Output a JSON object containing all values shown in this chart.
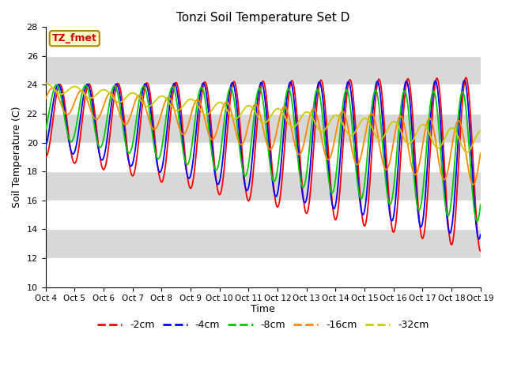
{
  "title": "Tonzi Soil Temperature Set D",
  "xlabel": "Time",
  "ylabel": "Soil Temperature (C)",
  "ylim": [
    10,
    28
  ],
  "yticks": [
    10,
    12,
    14,
    16,
    18,
    20,
    22,
    24,
    26,
    28
  ],
  "xtick_labels": [
    "Oct 4",
    "Oct 5",
    "Oct 6",
    "Oct 7",
    "Oct 8",
    "Oct 9",
    "Oct 10",
    "Oct 11",
    "Oct 12",
    "Oct 13",
    "Oct 14",
    "Oct 15",
    "Oct 16",
    "Oct 17",
    "Oct 18",
    "Oct 19"
  ],
  "label_box_text": "TZ_fmet",
  "label_box_color": "#ffffcc",
  "label_box_edge": "#aa8800",
  "label_text_color": "#cc0000",
  "colors": {
    "-2cm": "#ff0000",
    "-4cm": "#0000ff",
    "-8cm": "#00cc00",
    "-16cm": "#ff8800",
    "-32cm": "#cccc00"
  },
  "legend_labels": [
    "-2cm",
    "-4cm",
    "-8cm",
    "-16cm",
    "-32cm"
  ],
  "bg_color": "#ffffff",
  "plot_bg_color": "#d8d8d8",
  "grid_color": "#ffffff",
  "n_points": 1500
}
